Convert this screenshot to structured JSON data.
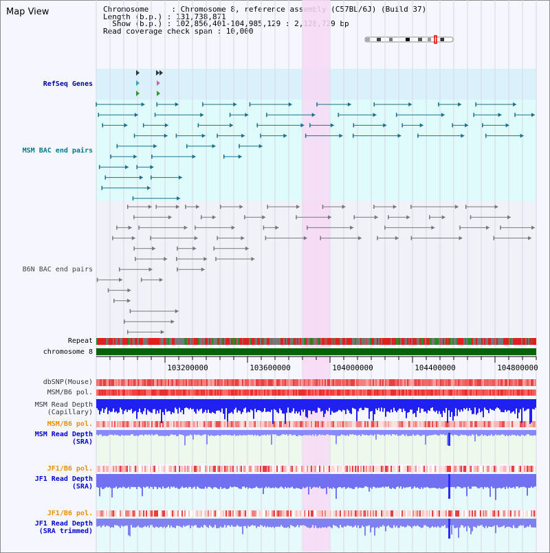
{
  "page_title": "Map View",
  "header": {
    "line1": "Chromosome     : Chromosome 8, reference assembly (C57BL/6J) (Build 37)",
    "line2": "Length (b.p.) : 131,738,871",
    "line3": "  Show (b.p.) : 102,856,401-104,985,129 : 2,128,729 bp",
    "line4": "Read coverage check span : 10,000"
  },
  "tracks": {
    "refseq": "RefSeq Genes",
    "msm_bac": "MSM BAC end pairs",
    "b6n_bac": "B6N BAC end pairs",
    "repeat": "Repeat",
    "chromosome": "chromosome 8",
    "dbsnp": "dbSNP(Mouse)",
    "msm_b6_pol_1": "MSM/B6 pol.",
    "msm_depth_cap": "MSM Read Depth\n(Capillary)",
    "msm_b6_pol_2": "MSM/B6 pol.",
    "msm_depth_sra": "MSM Read Depth\n(SRA)",
    "jf1_b6_pol_1": "JF1/B6 pol.",
    "jf1_depth_sra": "JF1 Read Depth\n(SRA)",
    "jf1_b6_pol_2": "JF1/B6 pol.",
    "jf1_depth_trim": "JF1 Read Depth\n(SRA trimmed)"
  },
  "axis": {
    "ticks": [
      "103200000",
      "103600000",
      "104000000",
      "104400000",
      "104800000"
    ]
  },
  "colors": {
    "highlight": "#f7d9f5",
    "refseq_bg": "#daf1fb",
    "msm_bg": "#e0fbfb",
    "b6n_bg": "#f1f1f8",
    "chromosome_bar": "#006400",
    "msm_label": "#007a8a",
    "refseq_label": "#0000aa",
    "b6n_label": "#444444",
    "pol_label": "#e89000",
    "depth_label": "#0000cc",
    "depth_blue": "#2a2aff",
    "depth_light": "#8888ff"
  }
}
